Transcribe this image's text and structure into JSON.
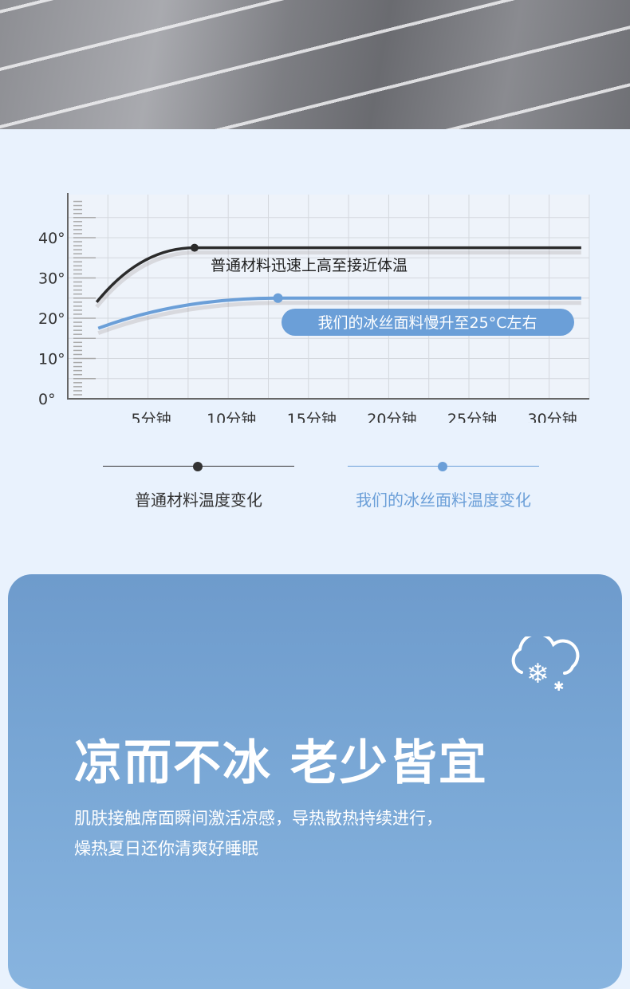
{
  "chart_data": {
    "type": "line",
    "ylim": [
      0,
      50
    ],
    "xlim": [
      0,
      32.5
    ],
    "y_ticks": [
      0,
      10,
      20,
      30,
      40
    ],
    "y_tick_labels": [
      "0°",
      "10°",
      "20°",
      "30°",
      "40°"
    ],
    "x_ticks": [
      5,
      10,
      15,
      20,
      25,
      30
    ],
    "x_tick_labels": [
      "5分钟",
      "10分钟",
      "15分钟",
      "20分钟",
      "25分钟",
      "30分钟"
    ],
    "grid": true,
    "legend_placement": "bottom",
    "series": [
      {
        "name": "普通材料温度变化",
        "color": "#2b2b2b",
        "points": [
          [
            1.8,
            24
          ],
          [
            7.9,
            37.5
          ],
          [
            32,
            37.5
          ]
        ],
        "marker_at": [
          7.9,
          37.5
        ],
        "annotation": "普通材料迅速上高至接近体温"
      },
      {
        "name": "我们的冰丝面料温度变化",
        "color": "#6b9fd8",
        "points": [
          [
            1.9,
            17.5
          ],
          [
            13.1,
            25
          ],
          [
            32,
            25
          ]
        ],
        "marker_at": [
          13.1,
          25
        ],
        "annotation": "我们的冰丝面料慢升至25°C左右"
      }
    ]
  },
  "banner": {
    "title": "凉而不冰 老少皆宜",
    "body_line1": "肌肤接触席面瞬间激活凉感，导热散热持续进行，",
    "body_line2": "燥热夏日还你清爽好睡眠",
    "icon": "snow-cloud-icon"
  }
}
